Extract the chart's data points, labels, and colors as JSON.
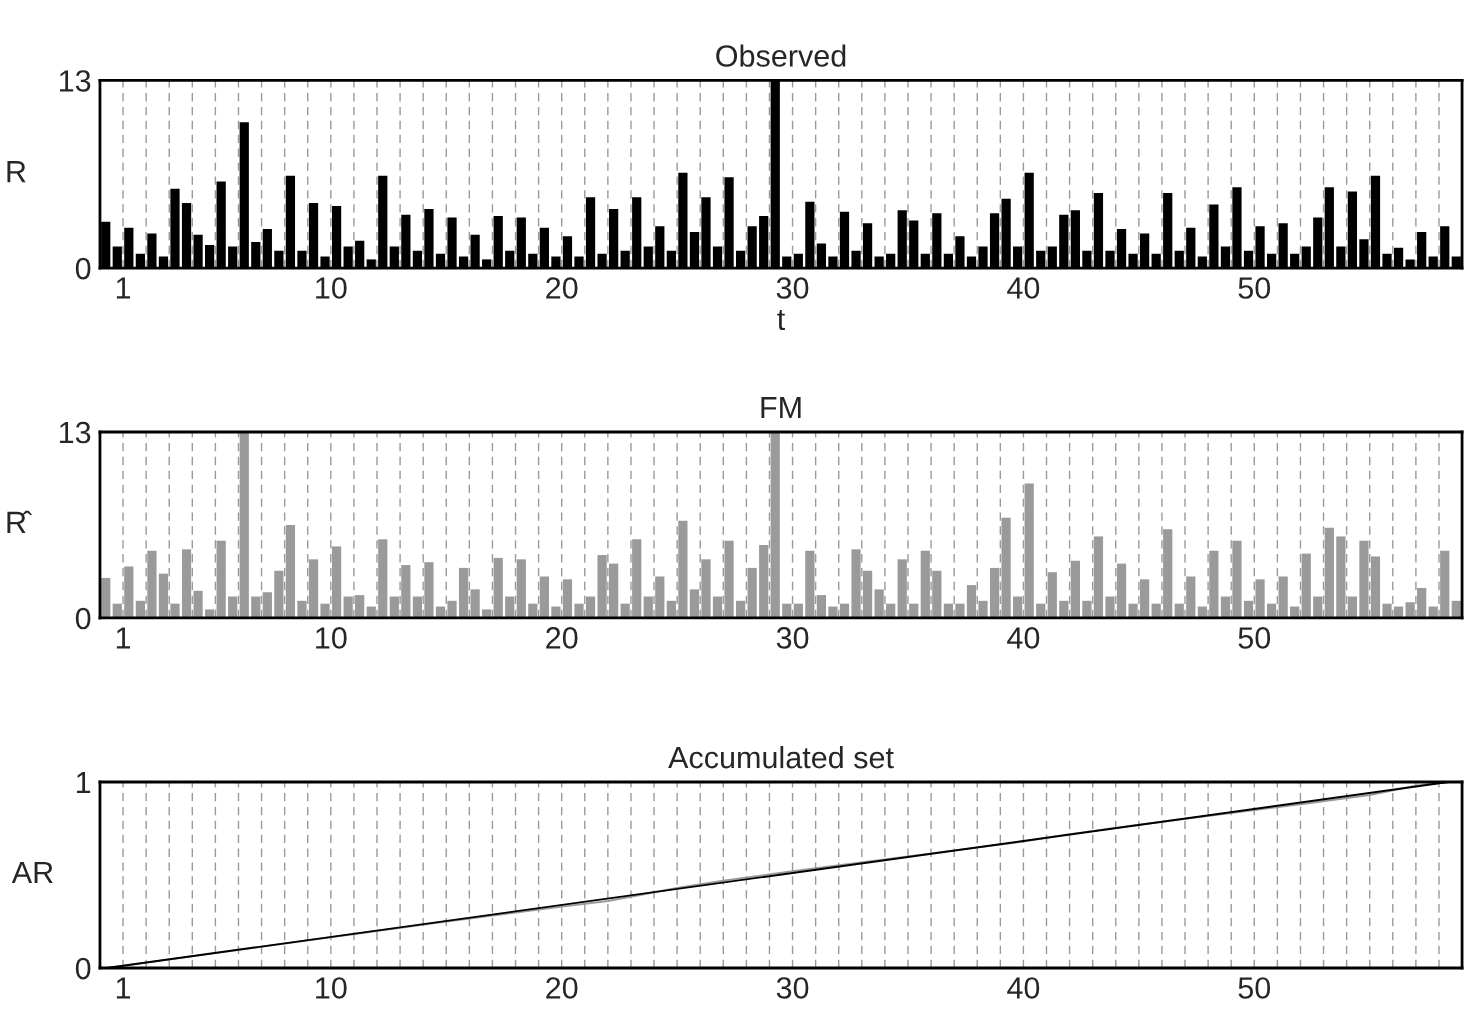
{
  "chart_data": [
    {
      "type": "bar",
      "title": "Observed",
      "xlabel": "t",
      "ylabel": "R",
      "color": "#000000",
      "grid": "x",
      "xlim": [
        0,
        59
      ],
      "ylim": [
        0,
        13
      ],
      "yticks": [
        0,
        13
      ],
      "xticks": [
        1,
        {
          "value": 2,
          "label": null
        },
        {
          "value": 3,
          "label": null
        },
        {
          "value": 4,
          "label": null
        },
        {
          "value": 5,
          "label": null
        },
        {
          "value": 6,
          "label": null
        },
        {
          "value": 7,
          "label": null
        },
        {
          "value": 8,
          "label": null
        },
        {
          "value": 9,
          "label": null
        },
        10,
        {
          "value": 11,
          "label": null
        },
        {
          "value": 12,
          "label": null
        },
        {
          "value": 13,
          "label": null
        },
        {
          "value": 14,
          "label": null
        },
        {
          "value": 15,
          "label": null
        },
        {
          "value": 16,
          "label": null
        },
        {
          "value": 17,
          "label": null
        },
        {
          "value": 18,
          "label": null
        },
        {
          "value": 19,
          "label": null
        },
        20,
        {
          "value": 21,
          "label": null
        },
        {
          "value": 22,
          "label": null
        },
        {
          "value": 23,
          "label": null
        },
        {
          "value": 24,
          "label": null
        },
        {
          "value": 25,
          "label": null
        },
        {
          "value": 26,
          "label": null
        },
        {
          "value": 27,
          "label": null
        },
        {
          "value": 28,
          "label": null
        },
        {
          "value": 29,
          "label": null
        },
        30,
        {
          "value": 31,
          "label": null
        },
        {
          "value": 32,
          "label": null
        },
        {
          "value": 33,
          "label": null
        },
        {
          "value": 34,
          "label": null
        },
        {
          "value": 35,
          "label": null
        },
        {
          "value": 36,
          "label": null
        },
        {
          "value": 37,
          "label": null
        },
        {
          "value": 38,
          "label": null
        },
        {
          "value": 39,
          "label": null
        },
        40,
        {
          "value": 41,
          "label": null
        },
        {
          "value": 42,
          "label": null
        },
        {
          "value": 43,
          "label": null
        },
        {
          "value": 44,
          "label": null
        },
        {
          "value": 45,
          "label": null
        },
        {
          "value": 46,
          "label": null
        },
        {
          "value": 47,
          "label": null
        },
        {
          "value": 48,
          "label": null
        },
        {
          "value": 49,
          "label": null
        },
        50,
        {
          "value": 51,
          "label": null
        },
        {
          "value": 52,
          "label": null
        },
        {
          "value": 53,
          "label": null
        },
        {
          "value": 54,
          "label": null
        },
        {
          "value": 55,
          "label": null
        },
        {
          "value": 56,
          "label": null
        },
        {
          "value": 57,
          "label": null
        },
        {
          "value": 58,
          "label": null
        }
      ],
      "x": [
        0.25,
        0.75,
        1.25,
        1.75,
        2.25,
        2.75,
        3.25,
        3.75,
        4.25,
        4.75,
        5.25,
        5.75,
        6.25,
        6.75,
        7.25,
        7.75,
        8.25,
        8.75,
        9.25,
        9.75,
        10.25,
        10.75,
        11.25,
        11.75,
        12.25,
        12.75,
        13.25,
        13.75,
        14.25,
        14.75,
        15.25,
        15.75,
        16.25,
        16.75,
        17.25,
        17.75,
        18.25,
        18.75,
        19.25,
        19.75,
        20.25,
        20.75,
        21.25,
        21.75,
        22.25,
        22.75,
        23.25,
        23.75,
        24.25,
        24.75,
        25.25,
        25.75,
        26.25,
        26.75,
        27.25,
        27.75,
        28.25,
        28.75,
        29.25,
        29.75,
        30.25,
        30.75,
        31.25,
        31.75,
        32.25,
        32.75,
        33.25,
        33.75,
        34.25,
        34.75,
        35.25,
        35.75,
        36.25,
        36.75,
        37.25,
        37.75,
        38.25,
        38.75,
        39.25,
        39.75,
        40.25,
        40.75,
        41.25,
        41.75,
        42.25,
        42.75,
        43.25,
        43.75,
        44.25,
        44.75,
        45.25,
        45.75,
        46.25,
        46.75,
        47.25,
        47.75,
        48.25,
        48.75,
        49.25,
        49.75,
        50.25,
        50.75,
        51.25,
        51.75,
        52.25,
        52.75,
        53.25,
        53.75,
        54.25,
        54.75,
        55.25,
        55.75,
        56.25,
        56.75,
        57.25,
        57.75,
        58.25,
        58.75
      ],
      "values": [
        3.2,
        1.5,
        2.8,
        1.0,
        2.4,
        0.8,
        5.5,
        4.5,
        2.3,
        1.6,
        6.0,
        1.5,
        10.1,
        1.8,
        2.7,
        1.2,
        6.4,
        1.2,
        4.5,
        0.8,
        4.3,
        1.5,
        1.9,
        0.6,
        6.4,
        1.5,
        3.7,
        1.2,
        4.1,
        1.0,
        3.5,
        0.8,
        2.3,
        0.6,
        3.6,
        1.2,
        3.5,
        1.0,
        2.8,
        0.8,
        2.2,
        0.8,
        4.9,
        1.0,
        4.1,
        1.2,
        4.9,
        1.5,
        2.9,
        1.2,
        6.6,
        2.5,
        4.9,
        1.5,
        6.3,
        1.2,
        2.9,
        3.6,
        13,
        0.8,
        1.0,
        4.6,
        1.7,
        0.8,
        3.9,
        1.2,
        3.1,
        0.8,
        1.0,
        4.0,
        3.3,
        1.0,
        3.8,
        1.0,
        2.2,
        0.8,
        1.5,
        3.8,
        4.8,
        1.5,
        6.6,
        1.2,
        1.5,
        3.7,
        4.0,
        1.2,
        5.2,
        1.2,
        2.7,
        1.0,
        2.4,
        1.0,
        5.2,
        1.2,
        2.8,
        0.8,
        4.4,
        1.5,
        5.6,
        1.2,
        2.9,
        1.0,
        3.1,
        1.0,
        1.5,
        3.5,
        5.6,
        1.5,
        5.3,
        2.0,
        6.4,
        1.0,
        1.4,
        0.6,
        2.5,
        0.8,
        2.9,
        0.8
      ]
    },
    {
      "type": "bar",
      "title": "FM",
      "ylabel": "R̂",
      "color": "#9a9a9a",
      "grid": "x",
      "xlim": [
        0,
        59
      ],
      "ylim": [
        0,
        13
      ],
      "yticks": [
        0,
        13
      ],
      "xticks": [
        1,
        {
          "value": 2,
          "label": null
        },
        {
          "value": 3,
          "label": null
        },
        {
          "value": 4,
          "label": null
        },
        {
          "value": 5,
          "label": null
        },
        {
          "value": 6,
          "label": null
        },
        {
          "value": 7,
          "label": null
        },
        {
          "value": 8,
          "label": null
        },
        {
          "value": 9,
          "label": null
        },
        10,
        {
          "value": 11,
          "label": null
        },
        {
          "value": 12,
          "label": null
        },
        {
          "value": 13,
          "label": null
        },
        {
          "value": 14,
          "label": null
        },
        {
          "value": 15,
          "label": null
        },
        {
          "value": 16,
          "label": null
        },
        {
          "value": 17,
          "label": null
        },
        {
          "value": 18,
          "label": null
        },
        {
          "value": 19,
          "label": null
        },
        20,
        {
          "value": 21,
          "label": null
        },
        {
          "value": 22,
          "label": null
        },
        {
          "value": 23,
          "label": null
        },
        {
          "value": 24,
          "label": null
        },
        {
          "value": 25,
          "label": null
        },
        {
          "value": 26,
          "label": null
        },
        {
          "value": 27,
          "label": null
        },
        {
          "value": 28,
          "label": null
        },
        {
          "value": 29,
          "label": null
        },
        30,
        {
          "value": 31,
          "label": null
        },
        {
          "value": 32,
          "label": null
        },
        {
          "value": 33,
          "label": null
        },
        {
          "value": 34,
          "label": null
        },
        {
          "value": 35,
          "label": null
        },
        {
          "value": 36,
          "label": null
        },
        {
          "value": 37,
          "label": null
        },
        {
          "value": 38,
          "label": null
        },
        {
          "value": 39,
          "label": null
        },
        40,
        {
          "value": 41,
          "label": null
        },
        {
          "value": 42,
          "label": null
        },
        {
          "value": 43,
          "label": null
        },
        {
          "value": 44,
          "label": null
        },
        {
          "value": 45,
          "label": null
        },
        {
          "value": 46,
          "label": null
        },
        {
          "value": 47,
          "label": null
        },
        {
          "value": 48,
          "label": null
        },
        {
          "value": 49,
          "label": null
        },
        50,
        {
          "value": 51,
          "label": null
        },
        {
          "value": 52,
          "label": null
        },
        {
          "value": 53,
          "label": null
        },
        {
          "value": 54,
          "label": null
        },
        {
          "value": 55,
          "label": null
        },
        {
          "value": 56,
          "label": null
        },
        {
          "value": 57,
          "label": null
        },
        {
          "value": 58,
          "label": null
        }
      ],
      "x": [
        0.25,
        0.75,
        1.25,
        1.75,
        2.25,
        2.75,
        3.25,
        3.75,
        4.25,
        4.75,
        5.25,
        5.75,
        6.25,
        6.75,
        7.25,
        7.75,
        8.25,
        8.75,
        9.25,
        9.75,
        10.25,
        10.75,
        11.25,
        11.75,
        12.25,
        12.75,
        13.25,
        13.75,
        14.25,
        14.75,
        15.25,
        15.75,
        16.25,
        16.75,
        17.25,
        17.75,
        18.25,
        18.75,
        19.25,
        19.75,
        20.25,
        20.75,
        21.25,
        21.75,
        22.25,
        22.75,
        23.25,
        23.75,
        24.25,
        24.75,
        25.25,
        25.75,
        26.25,
        26.75,
        27.25,
        27.75,
        28.25,
        28.75,
        29.25,
        29.75,
        30.25,
        30.75,
        31.25,
        31.75,
        32.25,
        32.75,
        33.25,
        33.75,
        34.25,
        34.75,
        35.25,
        35.75,
        36.25,
        36.75,
        37.25,
        37.75,
        38.25,
        38.75,
        39.25,
        39.75,
        40.25,
        40.75,
        41.25,
        41.75,
        42.25,
        42.75,
        43.25,
        43.75,
        44.25,
        44.75,
        45.25,
        45.75,
        46.25,
        46.75,
        47.25,
        47.75,
        48.25,
        48.75,
        49.25,
        49.75,
        50.25,
        50.75,
        51.25,
        51.75,
        52.25,
        52.75,
        53.25,
        53.75,
        54.25,
        54.75,
        55.25,
        55.75,
        56.25,
        56.75,
        57.25,
        57.75,
        58.25,
        58.75
      ],
      "values": [
        2.8,
        1.0,
        3.6,
        1.2,
        4.7,
        3.1,
        1.0,
        4.8,
        1.9,
        0.6,
        5.4,
        1.5,
        13,
        1.5,
        1.8,
        3.3,
        6.5,
        1.2,
        4.1,
        1.0,
        5.0,
        1.5,
        1.6,
        0.8,
        5.5,
        1.5,
        3.7,
        1.5,
        3.9,
        0.8,
        1.2,
        3.5,
        2.0,
        0.6,
        4.2,
        1.5,
        4.1,
        1.0,
        2.9,
        0.8,
        2.7,
        1.0,
        1.5,
        4.4,
        3.8,
        1.0,
        5.5,
        1.5,
        2.9,
        1.2,
        6.8,
        2.0,
        4.1,
        1.5,
        5.4,
        1.2,
        3.5,
        5.1,
        13,
        1.0,
        1.0,
        4.7,
        1.6,
        0.8,
        1.0,
        4.8,
        3.3,
        2.0,
        1.0,
        4.1,
        1.0,
        4.7,
        3.3,
        1.0,
        1.0,
        2.3,
        1.2,
        3.5,
        7.0,
        1.5,
        9.4,
        1.0,
        3.2,
        1.2,
        4.0,
        1.2,
        5.7,
        1.5,
        3.8,
        1.0,
        2.7,
        1.0,
        6.2,
        1.0,
        2.9,
        0.8,
        4.7,
        1.5,
        5.4,
        1.2,
        2.7,
        1.0,
        2.9,
        0.8,
        4.5,
        1.5,
        6.3,
        5.7,
        1.5,
        5.4,
        4.3,
        1.0,
        0.8,
        1.1,
        2.1,
        0.8,
        4.7,
        1.2
      ]
    },
    {
      "type": "line",
      "title": "Accumulated set",
      "ylabel": "AR",
      "grid": "x",
      "xlim": [
        0,
        59
      ],
      "ylim": [
        0,
        1
      ],
      "yticks": [
        0,
        1
      ],
      "xticks": [
        1,
        {
          "value": 2,
          "label": null
        },
        {
          "value": 3,
          "label": null
        },
        {
          "value": 4,
          "label": null
        },
        {
          "value": 5,
          "label": null
        },
        {
          "value": 6,
          "label": null
        },
        {
          "value": 7,
          "label": null
        },
        {
          "value": 8,
          "label": null
        },
        {
          "value": 9,
          "label": null
        },
        10,
        {
          "value": 11,
          "label": null
        },
        {
          "value": 12,
          "label": null
        },
        {
          "value": 13,
          "label": null
        },
        {
          "value": 14,
          "label": null
        },
        {
          "value": 15,
          "label": null
        },
        {
          "value": 16,
          "label": null
        },
        {
          "value": 17,
          "label": null
        },
        {
          "value": 18,
          "label": null
        },
        {
          "value": 19,
          "label": null
        },
        20,
        {
          "value": 21,
          "label": null
        },
        {
          "value": 22,
          "label": null
        },
        {
          "value": 23,
          "label": null
        },
        {
          "value": 24,
          "label": null
        },
        {
          "value": 25,
          "label": null
        },
        {
          "value": 26,
          "label": null
        },
        {
          "value": 27,
          "label": null
        },
        {
          "value": 28,
          "label": null
        },
        {
          "value": 29,
          "label": null
        },
        30,
        {
          "value": 31,
          "label": null
        },
        {
          "value": 32,
          "label": null
        },
        {
          "value": 33,
          "label": null
        },
        {
          "value": 34,
          "label": null
        },
        {
          "value": 35,
          "label": null
        },
        {
          "value": 36,
          "label": null
        },
        {
          "value": 37,
          "label": null
        },
        {
          "value": 38,
          "label": null
        },
        {
          "value": 39,
          "label": null
        },
        40,
        {
          "value": 41,
          "label": null
        },
        {
          "value": 42,
          "label": null
        },
        {
          "value": 43,
          "label": null
        },
        {
          "value": 44,
          "label": null
        },
        {
          "value": 45,
          "label": null
        },
        {
          "value": 46,
          "label": null
        },
        {
          "value": 47,
          "label": null
        },
        {
          "value": 48,
          "label": null
        },
        {
          "value": 49,
          "label": null
        },
        50,
        {
          "value": 51,
          "label": null
        },
        {
          "value": 52,
          "label": null
        },
        {
          "value": 53,
          "label": null
        },
        {
          "value": 54,
          "label": null
        },
        {
          "value": 55,
          "label": null
        },
        {
          "value": 56,
          "label": null
        },
        {
          "value": 57,
          "label": null
        },
        {
          "value": 58,
          "label": null
        }
      ],
      "series": [
        {
          "color": "#999999",
          "x": [
            0.3,
            5,
            10,
            15,
            20,
            22,
            25,
            27,
            30,
            35,
            40,
            42,
            45,
            50,
            52,
            55,
            57,
            58.4
          ],
          "values": [
            0,
            0.08,
            0.165,
            0.25,
            0.33,
            0.36,
            0.43,
            0.47,
            0.52,
            0.6,
            0.68,
            0.72,
            0.77,
            0.85,
            0.88,
            0.93,
            0.98,
            1
          ]
        },
        {
          "color": "#000000",
          "x": [
            0.3,
            58.4
          ],
          "values": [
            0,
            1
          ]
        }
      ]
    }
  ]
}
